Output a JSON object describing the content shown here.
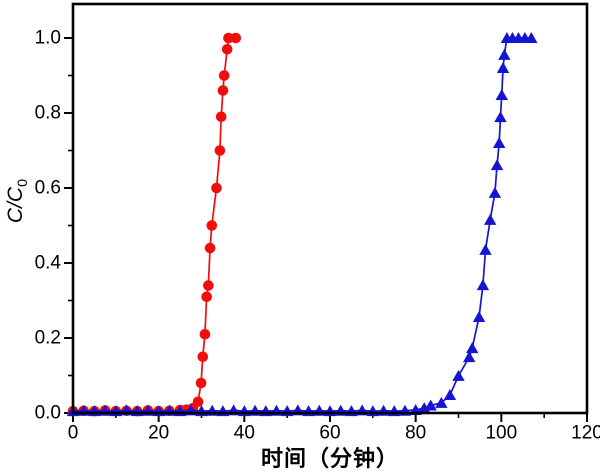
{
  "chart_data": {
    "type": "line",
    "title": "",
    "xlabel": "时间（分钟）",
    "ylabel": "C/C0",
    "ylabel_base": "C/C",
    "ylabel_sub": "0",
    "xlim": [
      0,
      120
    ],
    "ylim": [
      0,
      1.0907
    ],
    "xticks": [
      0,
      20,
      40,
      60,
      80,
      100,
      120
    ],
    "yticks": [
      0.0,
      0.2,
      0.4,
      0.6,
      0.8,
      1.0
    ],
    "x_minor_step": 10,
    "y_minor_step": 0.1,
    "grid": false,
    "legend": "none",
    "frame_color": "#000000",
    "background": "#ffffff",
    "series": [
      {
        "name": "red-circles",
        "marker": "circle",
        "color": "#f20d0d",
        "points": [
          [
            0,
            0.005
          ],
          [
            2.5,
            0.006
          ],
          [
            5,
            0.005
          ],
          [
            7.5,
            0.007
          ],
          [
            10,
            0.005
          ],
          [
            12.5,
            0.006
          ],
          [
            15,
            0.005
          ],
          [
            17.5,
            0.007
          ],
          [
            20,
            0.005
          ],
          [
            22.5,
            0.006
          ],
          [
            25,
            0.008
          ],
          [
            26.5,
            0.009
          ],
          [
            28,
            0.013
          ],
          [
            29.2,
            0.03
          ],
          [
            29.9,
            0.08
          ],
          [
            30.3,
            0.15
          ],
          [
            30.8,
            0.21
          ],
          [
            31.2,
            0.31
          ],
          [
            31.6,
            0.34
          ],
          [
            32,
            0.44
          ],
          [
            32.4,
            0.5
          ],
          [
            33.5,
            0.6
          ],
          [
            34.3,
            0.7
          ],
          [
            34.6,
            0.79
          ],
          [
            35,
            0.86
          ],
          [
            35.3,
            0.9
          ],
          [
            36,
            0.97
          ],
          [
            36.3,
            1.0
          ],
          [
            38,
            1.0
          ]
        ]
      },
      {
        "name": "blue-triangles",
        "marker": "triangle",
        "color": "#1414d2",
        "points": [
          [
            0,
            0.005
          ],
          [
            2.5,
            0.006
          ],
          [
            5,
            0.005
          ],
          [
            7.5,
            0.006
          ],
          [
            10,
            0.005
          ],
          [
            12.5,
            0.007
          ],
          [
            15,
            0.005
          ],
          [
            17.5,
            0.006
          ],
          [
            20,
            0.005
          ],
          [
            22.5,
            0.006
          ],
          [
            25,
            0.005
          ],
          [
            27.5,
            0.007
          ],
          [
            30,
            0.005
          ],
          [
            32.5,
            0.006
          ],
          [
            35,
            0.005
          ],
          [
            37.5,
            0.007
          ],
          [
            40,
            0.005
          ],
          [
            42.5,
            0.006
          ],
          [
            45,
            0.005
          ],
          [
            47.5,
            0.006
          ],
          [
            50,
            0.005
          ],
          [
            52.5,
            0.007
          ],
          [
            55,
            0.005
          ],
          [
            57.5,
            0.006
          ],
          [
            60,
            0.005
          ],
          [
            62.5,
            0.006
          ],
          [
            65,
            0.005
          ],
          [
            67.5,
            0.007
          ],
          [
            70,
            0.005
          ],
          [
            72.5,
            0.006
          ],
          [
            75,
            0.005
          ],
          [
            77.5,
            0.006
          ],
          [
            80,
            0.008
          ],
          [
            82,
            0.013
          ],
          [
            83.5,
            0.02
          ],
          [
            86,
            0.027
          ],
          [
            88,
            0.048
          ],
          [
            90,
            0.099
          ],
          [
            92.5,
            0.149
          ],
          [
            93.2,
            0.173
          ],
          [
            94.8,
            0.256
          ],
          [
            95.7,
            0.341
          ],
          [
            96.3,
            0.435
          ],
          [
            97.4,
            0.515
          ],
          [
            98.5,
            0.587
          ],
          [
            99,
            0.661
          ],
          [
            99.5,
            0.72
          ],
          [
            99.8,
            0.789
          ],
          [
            100.1,
            0.848
          ],
          [
            100.4,
            0.92
          ],
          [
            100.7,
            0.955
          ],
          [
            101.3,
            1.0
          ],
          [
            102.6,
            1.0
          ],
          [
            104,
            1.0
          ],
          [
            105.5,
            1.0
          ],
          [
            107,
            1.0
          ]
        ]
      }
    ]
  }
}
